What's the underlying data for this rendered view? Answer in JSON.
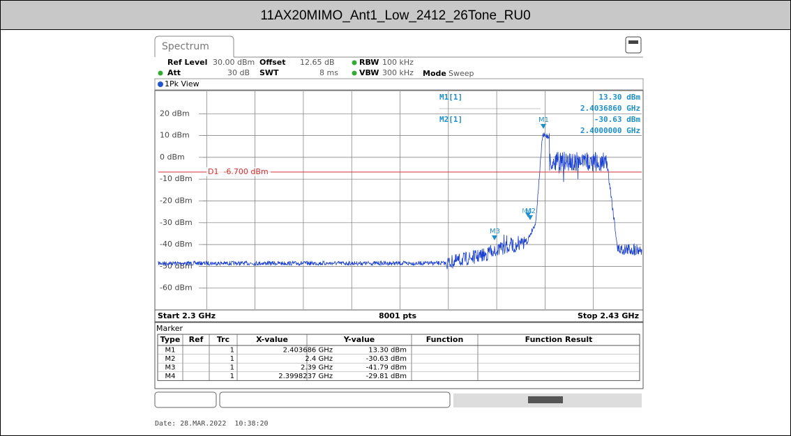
{
  "header": {
    "title": "11AX20MIMO_Ant1_Low_2412_26Tone_RU0"
  },
  "tab": "Spectrum",
  "settings": {
    "ref_level_label": "Ref Level",
    "ref_level": "30.00 dBm",
    "offset_label": "Offset",
    "offset": "12.65 dB",
    "rbw_label": "RBW",
    "rbw": "100 kHz",
    "att_label": "Att",
    "att": "30 dB",
    "swt_label": "SWT",
    "swt": "8 ms",
    "vbw_label": "VBW",
    "vbw": "300 kHz",
    "mode_label": "Mode",
    "mode": "Sweep"
  },
  "view": "1Pk View",
  "y_labels": [
    "20 dBm",
    "10 dBm",
    "0 dBm",
    "-10 dBm",
    "-20 dBm",
    "-30 dBm",
    "-40 dBm",
    "-50 dBm",
    "-60 dBm"
  ],
  "display_line": "D1  -6.700 dBm",
  "marker_readout": [
    {
      "name": "M1[1]",
      "level": "13.30 dBm",
      "freq": "2.4036860 GHz"
    },
    {
      "name": "M2[1]",
      "level": "-30.63 dBm",
      "freq": "2.4000000 GHz"
    }
  ],
  "marker_labels": [
    "M1",
    "M2",
    "M3",
    "M4"
  ],
  "footer": {
    "start": "Start 2.3 GHz",
    "points": "8001 pts",
    "stop": "Stop 2.43 GHz"
  },
  "marker_table": {
    "title": "Marker",
    "headers": [
      "Type",
      "Ref",
      "Trc",
      "X-value",
      "Y-value",
      "Function",
      "Function Result"
    ],
    "rows": [
      {
        "type": "M1",
        "trc": "1",
        "x": "2.403686 GHz",
        "y": "13.30 dBm"
      },
      {
        "type": "M2",
        "trc": "1",
        "x": "2.4 GHz",
        "y": "-30.63 dBm"
      },
      {
        "type": "M3",
        "trc": "1",
        "x": "2.39 GHz",
        "y": "-41.79 dBm"
      },
      {
        "type": "M4",
        "trc": "1",
        "x": "2.3998237 GHz",
        "y": "-29.81 dBm"
      }
    ]
  },
  "date": "Date: 28.MAR.2022  10:38:20"
}
